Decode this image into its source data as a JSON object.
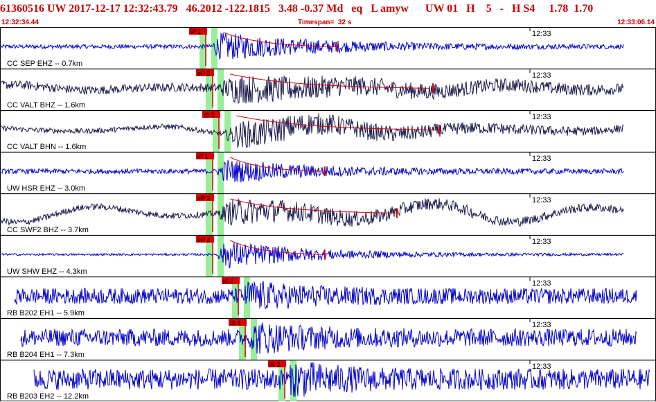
{
  "header": {
    "event_line": "61360516 UW 2017-12-17 12:32:43.79   46.2012 -122.1815   3.48 -0.37 Md   eq   L amyw      UW 01   H    5   -   H S4     1.78  1.70",
    "start_time": "12:32:34.44",
    "timespan": "Timespan=  32 s",
    "end_time": "12:33:06.14"
  },
  "colors": {
    "header": "#cc0000",
    "trace_blue": "#0000cc",
    "trace_navy": "#1a1a4d",
    "pick_red": "#dd0000",
    "pick_window": "#99ee99"
  },
  "chart_data": {
    "type": "line",
    "title": "61360516 UW 2017-12-17 12:32:43.79",
    "x_range_s": [
      0,
      32
    ],
    "minute_tick_label": "12:33",
    "traces": [
      {
        "label": "CC SEP EHZ -- 0.7km",
        "pick_label": "iP 1",
        "color": "#0000cc",
        "start_frac": 0.0,
        "end_frac": 0.95,
        "onset_frac": 0.32,
        "noise": 0.12,
        "signal": 0.8,
        "swell": 0.0,
        "coda_frac": 0.35
      },
      {
        "label": "CC VALT BHZ -- 1.6km",
        "pick_label": "eP 2",
        "color": "#1a1a4d",
        "start_frac": 0.0,
        "end_frac": 0.95,
        "onset_frac": 0.33,
        "noise": 0.25,
        "signal": 0.7,
        "swell": 0.2,
        "coda_frac": 0.6
      },
      {
        "label": "CC VALT BHN -- 1.6km",
        "pick_label": "iS 1",
        "color": "#1a1a4d",
        "start_frac": 0.0,
        "end_frac": 0.95,
        "onset_frac": 0.34,
        "noise": 0.15,
        "signal": 0.8,
        "swell": 0.35,
        "coda_frac": 0.6
      },
      {
        "label": "UW HSR EHZ -- 3.0km",
        "pick_label": "iP 1",
        "color": "#0000cc",
        "start_frac": 0.0,
        "end_frac": 0.95,
        "onset_frac": 0.33,
        "noise": 0.14,
        "signal": 0.65,
        "swell": 0.0,
        "coda_frac": 0.3
      },
      {
        "label": "CC SWF2 BHZ -- 3.7km",
        "pick_label": "eP 2",
        "color": "#1a1a4d",
        "start_frac": 0.0,
        "end_frac": 0.95,
        "onset_frac": 0.33,
        "noise": 0.18,
        "signal": 0.7,
        "swell": 0.55,
        "coda_frac": 0.5
      },
      {
        "label": "UW SHW EHZ -- 4.3km",
        "pick_label": "eP 2",
        "color": "#0000cc",
        "start_frac": 0.0,
        "end_frac": 0.95,
        "onset_frac": 0.33,
        "noise": 0.06,
        "signal": 0.85,
        "swell": 0.0,
        "coda_frac": 0.3
      },
      {
        "label": "RB B202 EH1 -- 5.9km",
        "pick_label": "iS 1",
        "color": "#0000cc",
        "start_frac": 0.02,
        "end_frac": 0.97,
        "onset_frac": 0.37,
        "noise": 0.45,
        "signal": 0.6,
        "swell": 0.0,
        "coda_frac": 0.2
      },
      {
        "label": "RB B204 EH1 -- 7.3km",
        "pick_label": "iS 1",
        "color": "#0000cc",
        "start_frac": 0.03,
        "end_frac": 0.97,
        "onset_frac": 0.38,
        "noise": 0.5,
        "signal": 0.6,
        "swell": 0.0,
        "coda_frac": 0.2
      },
      {
        "label": "RB B203 EH2 -- 12.2km",
        "pick_label": "iS 2",
        "color": "#0000cc",
        "start_frac": 0.05,
        "end_frac": 0.99,
        "onset_frac": 0.44,
        "noise": 0.6,
        "signal": 0.7,
        "swell": 0.0,
        "coda_frac": 0.15
      }
    ]
  }
}
